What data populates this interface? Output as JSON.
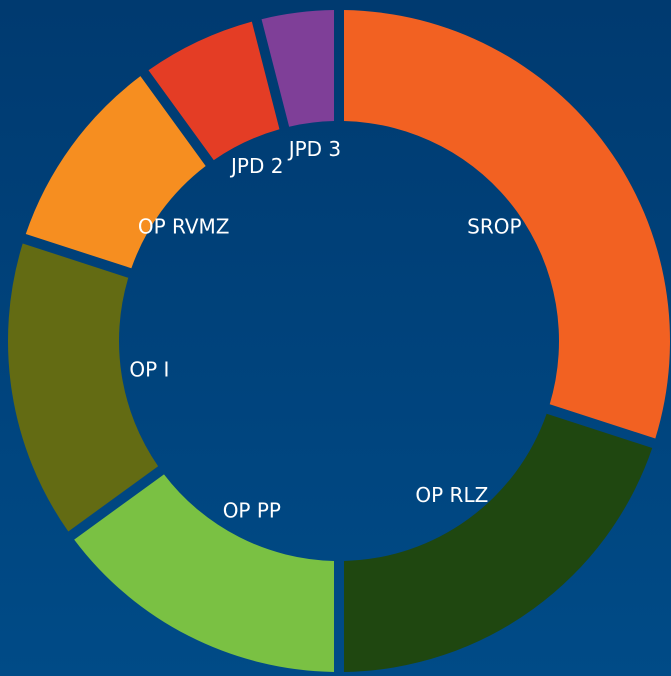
{
  "chart_data": {
    "type": "donut",
    "categories": [
      "SROP",
      "OP RLZ",
      "OP PP",
      "OP I",
      "OP RVMZ",
      "JPD 2",
      "JPD 3"
    ],
    "values": [
      30,
      20,
      15,
      15,
      10,
      6,
      4
    ],
    "colors": [
      "#f26122",
      "#1f4710",
      "#7ac143",
      "#636b13",
      "#f68e20",
      "#e43d25",
      "#7f3f98"
    ]
  }
}
